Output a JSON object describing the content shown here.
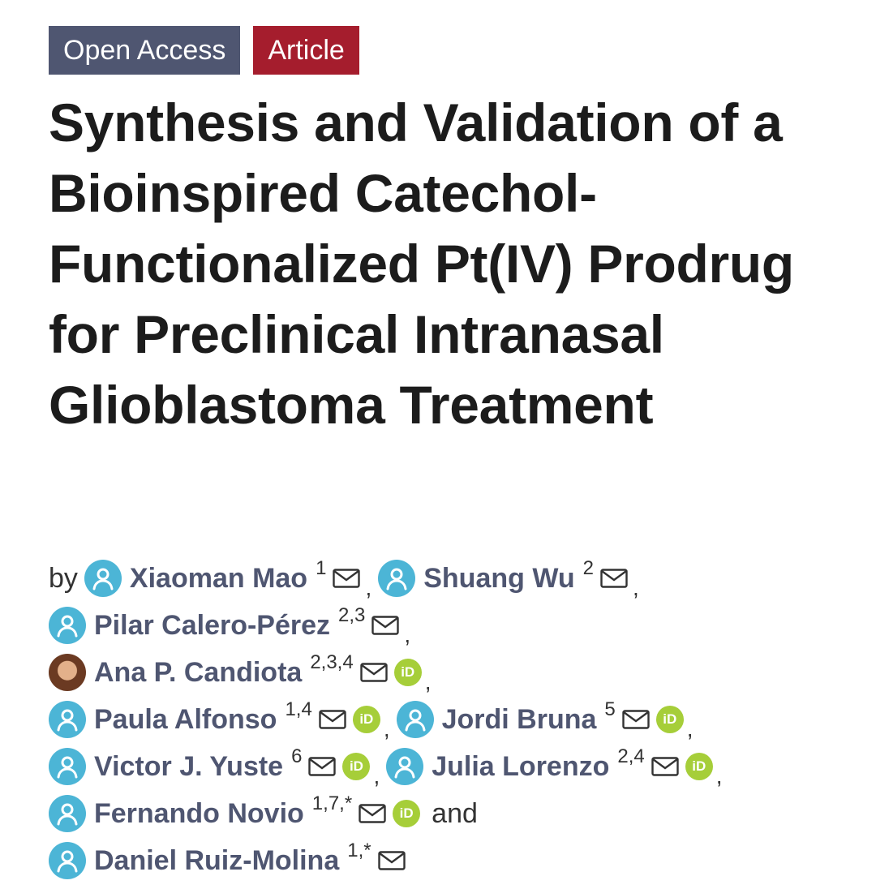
{
  "badges": {
    "open_access": "Open Access",
    "article": "Article"
  },
  "title": "Synthesis and Validation of a Bioinspired Catechol-Functionalized Pt(IV) Prodrug for Preclinical Intranasal Glioblastoma Treatment",
  "by_label": "by",
  "and_label": "and",
  "separator": ",",
  "authors": [
    {
      "name": "Xiaoman Mao",
      "aff": "1",
      "orcid": false,
      "photo": false
    },
    {
      "name": "Shuang Wu",
      "aff": "2",
      "orcid": false,
      "photo": false
    },
    {
      "name": "Pilar Calero-Pérez",
      "aff": "2,3",
      "orcid": false,
      "photo": false
    },
    {
      "name": "Ana P. Candiota",
      "aff": "2,3,4",
      "orcid": true,
      "photo": true
    },
    {
      "name": "Paula Alfonso",
      "aff": "1,4",
      "orcid": true,
      "photo": false
    },
    {
      "name": "Jordi Bruna",
      "aff": "5",
      "orcid": true,
      "photo": false
    },
    {
      "name": "Victor J. Yuste",
      "aff": "6",
      "orcid": true,
      "photo": false
    },
    {
      "name": "Julia Lorenzo",
      "aff": "2,4",
      "orcid": true,
      "photo": false
    },
    {
      "name": "Fernando Novio",
      "aff": "1,7,*",
      "orcid": true,
      "photo": false
    },
    {
      "name": "Daniel Ruiz-Molina",
      "aff": "1,*",
      "orcid": false,
      "photo": false
    }
  ],
  "orcid_label": "iD",
  "colors": {
    "open_access_bg": "#4f5671",
    "article_bg": "#a51d2d",
    "author_name": "#4f5671",
    "avatar": "#4cb5d6",
    "orcid": "#a6ce39"
  },
  "icons": {
    "avatar": "user-circle-icon",
    "email": "envelope-icon",
    "orcid": "orcid-icon"
  }
}
